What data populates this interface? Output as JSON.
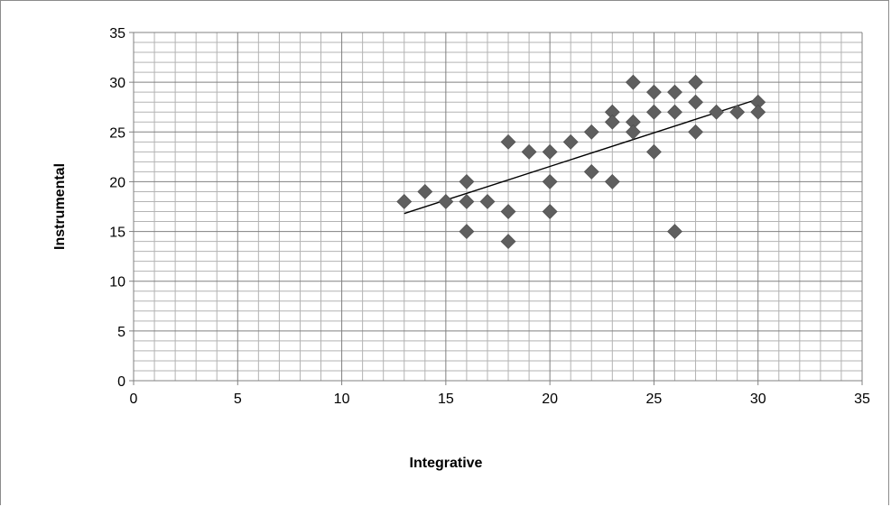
{
  "chart_data": {
    "type": "scatter",
    "xlabel": "Integrative",
    "ylabel": "Instrumental",
    "xlim": [
      0,
      35
    ],
    "ylim": [
      0,
      35
    ],
    "xticks": [
      0,
      5,
      10,
      15,
      20,
      25,
      30,
      35
    ],
    "yticks": [
      0,
      5,
      10,
      15,
      20,
      25,
      30,
      35
    ],
    "grid": true,
    "legend": "none",
    "marker": "diamond",
    "marker_color": "#5f5f5f",
    "points": [
      {
        "x": 13,
        "y": 18
      },
      {
        "x": 14,
        "y": 19
      },
      {
        "x": 15,
        "y": 18
      },
      {
        "x": 16,
        "y": 20
      },
      {
        "x": 16,
        "y": 18
      },
      {
        "x": 16,
        "y": 15
      },
      {
        "x": 17,
        "y": 18
      },
      {
        "x": 18,
        "y": 24
      },
      {
        "x": 18,
        "y": 17
      },
      {
        "x": 18,
        "y": 14
      },
      {
        "x": 19,
        "y": 23
      },
      {
        "x": 20,
        "y": 23
      },
      {
        "x": 20,
        "y": 20
      },
      {
        "x": 20,
        "y": 17
      },
      {
        "x": 21,
        "y": 24
      },
      {
        "x": 22,
        "y": 25
      },
      {
        "x": 22,
        "y": 21
      },
      {
        "x": 23,
        "y": 27
      },
      {
        "x": 23,
        "y": 26
      },
      {
        "x": 23,
        "y": 20
      },
      {
        "x": 24,
        "y": 30
      },
      {
        "x": 24,
        "y": 26
      },
      {
        "x": 24,
        "y": 25
      },
      {
        "x": 25,
        "y": 29
      },
      {
        "x": 25,
        "y": 27
      },
      {
        "x": 25,
        "y": 23
      },
      {
        "x": 26,
        "y": 29
      },
      {
        "x": 26,
        "y": 27
      },
      {
        "x": 26,
        "y": 15
      },
      {
        "x": 27,
        "y": 30
      },
      {
        "x": 27,
        "y": 28
      },
      {
        "x": 27,
        "y": 25
      },
      {
        "x": 28,
        "y": 27
      },
      {
        "x": 29,
        "y": 27
      },
      {
        "x": 30,
        "y": 28
      },
      {
        "x": 30,
        "y": 27
      }
    ],
    "trendline": {
      "type": "linear",
      "x": [
        13,
        30
      ],
      "y": [
        16.8,
        28.3
      ]
    }
  }
}
